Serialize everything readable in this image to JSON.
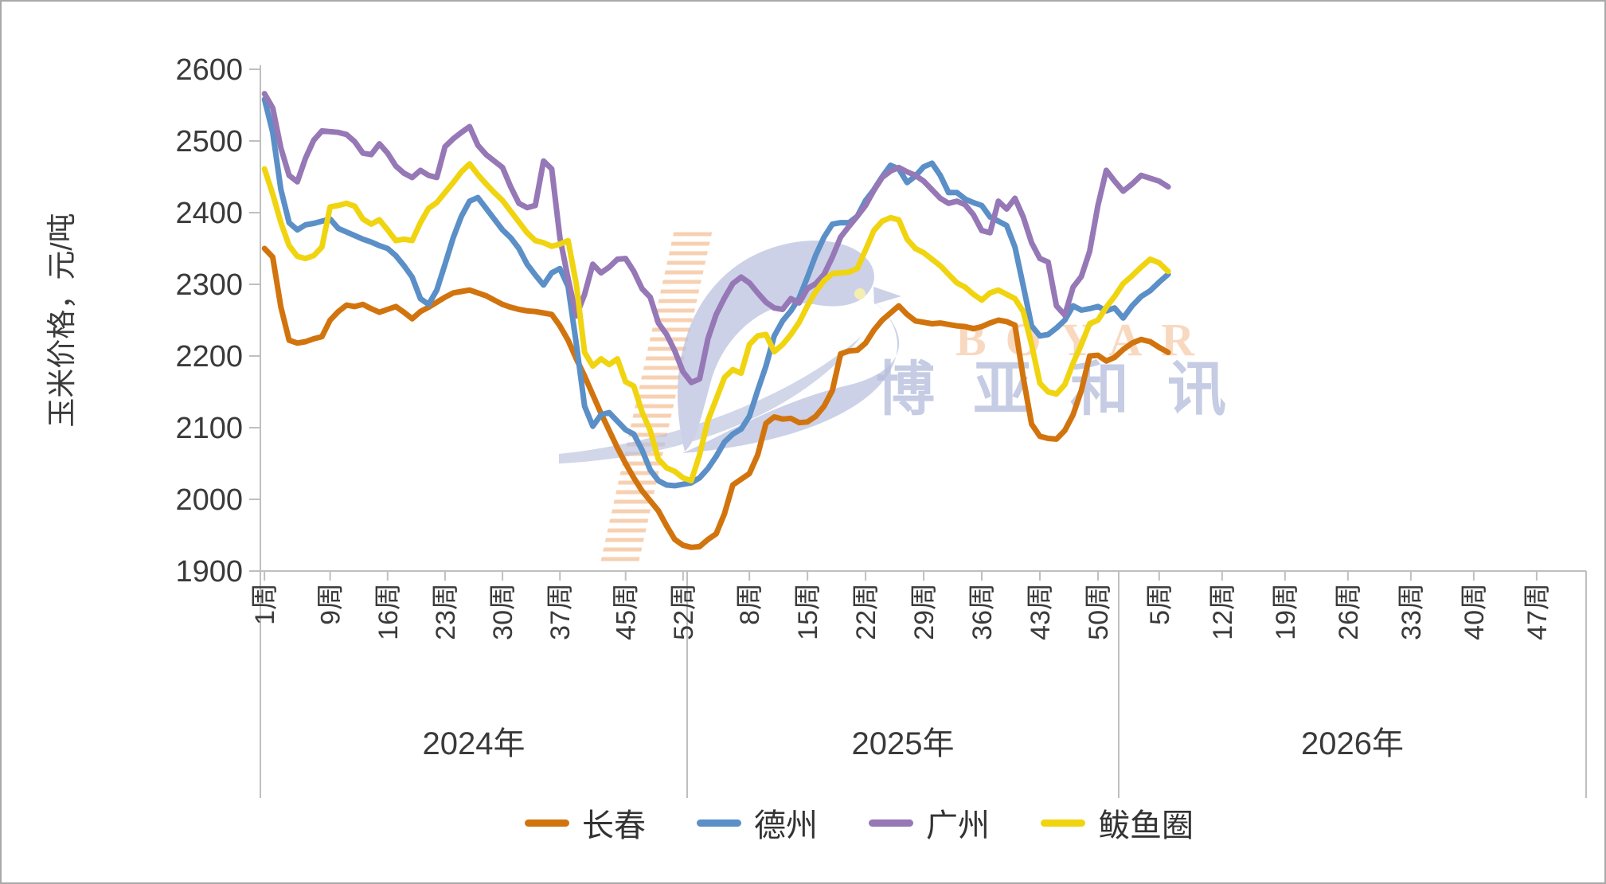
{
  "chart_data": {
    "type": "line",
    "title": "",
    "ylabel": "玉米价格，元/吨",
    "ylim": [
      1900,
      2600
    ],
    "yticks": [
      2600,
      2500,
      2400,
      2300,
      2200,
      2100,
      2000,
      1900
    ],
    "grid": "off",
    "legend_position": "bottom",
    "week_suffix": "周",
    "x_years": [
      {
        "label": "2024年",
        "weeks": 52,
        "tick_weeks": [
          1,
          9,
          16,
          23,
          30,
          37,
          45,
          52
        ],
        "tick_labels": [
          "1周",
          "9周",
          "16周",
          "23周",
          "30周",
          "37周",
          "45周",
          "52周"
        ]
      },
      {
        "label": "2025年",
        "weeks": 52,
        "tick_weeks": [
          8,
          15,
          22,
          29,
          36,
          43,
          50
        ],
        "tick_labels": [
          "8周",
          "15周",
          "22周",
          "29周",
          "36周",
          "43周",
          "50周"
        ]
      },
      {
        "label": "2026年",
        "weeks": 52,
        "tick_weeks": [
          5,
          12,
          19,
          26,
          33,
          40,
          47
        ],
        "tick_labels": [
          "5周",
          "12周",
          "19周",
          "26周",
          "33周",
          "40周",
          "47周"
        ]
      }
    ],
    "series": [
      {
        "id": "changchun",
        "name": "长春",
        "color": "#D2740E",
        "values_2024": [
          2350,
          2338,
          2268,
          2222,
          2218,
          2220,
          2224,
          2227,
          2250,
          2262,
          2271,
          2269,
          2272,
          2266,
          2261,
          2265,
          2269,
          2261,
          2252,
          2262,
          2268,
          2275,
          2282,
          2288,
          2290,
          2292,
          2288,
          2284,
          2278,
          2272,
          2268,
          2265,
          2263,
          2262,
          2260,
          2258,
          2242,
          2222,
          2196,
          2172,
          2146,
          2120,
          2096,
          2072,
          2050,
          2030,
          2012,
          1998,
          1984,
          1963,
          1944,
          1936
        ],
        "values_2025": [
          1933,
          1934,
          1944,
          1952,
          1980,
          2020,
          2028,
          2036,
          2062,
          2106,
          2115,
          2112,
          2113,
          2107,
          2108,
          2116,
          2130,
          2152,
          2203,
          2207,
          2208,
          2218,
          2236,
          2250,
          2260,
          2270,
          2258,
          2249,
          2247,
          2245,
          2246,
          2244,
          2242,
          2241,
          2238,
          2241,
          2246,
          2250,
          2248,
          2243,
          2170,
          2105,
          2088,
          2085,
          2084,
          2096,
          2118,
          2152,
          2200,
          2201,
          2193,
          2198
        ],
        "values_2026": [
          2209,
          2218,
          2223,
          2220,
          2212,
          2205
        ]
      },
      {
        "id": "dezhou",
        "name": "德州",
        "color": "#5B8FC7",
        "values_2024": [
          2558,
          2512,
          2432,
          2386,
          2376,
          2383,
          2385,
          2388,
          2391,
          2378,
          2373,
          2368,
          2363,
          2359,
          2354,
          2350,
          2340,
          2326,
          2310,
          2280,
          2272,
          2292,
          2328,
          2365,
          2395,
          2416,
          2421,
          2406,
          2391,
          2376,
          2365,
          2350,
          2328,
          2313,
          2299,
          2316,
          2322,
          2297,
          2217,
          2130,
          2102,
          2118,
          2121,
          2109,
          2097,
          2091,
          2069,
          2041,
          2026,
          2020,
          2019,
          2021
        ],
        "values_2025": [
          2023,
          2030,
          2043,
          2060,
          2080,
          2091,
          2098,
          2116,
          2152,
          2186,
          2228,
          2249,
          2263,
          2281,
          2310,
          2341,
          2366,
          2384,
          2386,
          2386,
          2395,
          2417,
          2432,
          2450,
          2466,
          2461,
          2442,
          2451,
          2464,
          2469,
          2452,
          2428,
          2428,
          2419,
          2414,
          2410,
          2394,
          2388,
          2382,
          2352,
          2298,
          2242,
          2228,
          2230,
          2239,
          2250,
          2270,
          2264,
          2266,
          2269,
          2263,
          2267
        ],
        "values_2026": [
          2253,
          2270,
          2283,
          2291,
          2303,
          2314
        ]
      },
      {
        "id": "guangzhou",
        "name": "广州",
        "color": "#9678B6",
        "values_2024": [
          2566,
          2546,
          2490,
          2452,
          2443,
          2476,
          2501,
          2514,
          2513,
          2512,
          2509,
          2499,
          2483,
          2481,
          2496,
          2483,
          2465,
          2455,
          2449,
          2459,
          2452,
          2449,
          2492,
          2503,
          2512,
          2520,
          2494,
          2481,
          2472,
          2463,
          2436,
          2413,
          2407,
          2410,
          2472,
          2461,
          2365,
          2308,
          2256,
          2286,
          2328,
          2316,
          2324,
          2335,
          2336,
          2318,
          2294,
          2282,
          2246,
          2230,
          2207,
          2178
        ],
        "values_2025": [
          2163,
          2168,
          2224,
          2258,
          2281,
          2301,
          2310,
          2302,
          2288,
          2275,
          2267,
          2265,
          2280,
          2274,
          2294,
          2301,
          2314,
          2338,
          2366,
          2381,
          2395,
          2410,
          2431,
          2449,
          2458,
          2463,
          2457,
          2452,
          2444,
          2432,
          2420,
          2413,
          2416,
          2411,
          2397,
          2375,
          2372,
          2416,
          2405,
          2420,
          2394,
          2358,
          2336,
          2331,
          2270,
          2257,
          2296,
          2311,
          2346,
          2410,
          2459,
          2444
        ],
        "values_2026": [
          2430,
          2440,
          2452,
          2448,
          2444,
          2436
        ]
      },
      {
        "id": "bayuquan",
        "name": "鲅鱼圈",
        "color": "#F0D410",
        "values_2024": [
          2461,
          2426,
          2386,
          2354,
          2339,
          2336,
          2340,
          2352,
          2408,
          2410,
          2413,
          2409,
          2391,
          2384,
          2390,
          2376,
          2361,
          2363,
          2361,
          2386,
          2406,
          2414,
          2428,
          2442,
          2457,
          2468,
          2453,
          2440,
          2428,
          2417,
          2402,
          2387,
          2372,
          2361,
          2358,
          2353,
          2356,
          2361,
          2300,
          2205,
          2186,
          2196,
          2188,
          2196,
          2164,
          2158,
          2122,
          2096,
          2056,
          2044,
          2039,
          2030
        ],
        "values_2025": [
          2026,
          2062,
          2110,
          2140,
          2170,
          2181,
          2176,
          2216,
          2228,
          2230,
          2206,
          2216,
          2230,
          2247,
          2270,
          2290,
          2305,
          2315,
          2316,
          2317,
          2322,
          2348,
          2375,
          2388,
          2393,
          2390,
          2363,
          2350,
          2344,
          2335,
          2326,
          2314,
          2302,
          2296,
          2286,
          2278,
          2288,
          2292,
          2286,
          2280,
          2262,
          2216,
          2162,
          2150,
          2147,
          2160,
          2190,
          2216,
          2245,
          2250,
          2268,
          2283
        ],
        "values_2026": [
          2301,
          2312,
          2324,
          2335,
          2330,
          2318
        ]
      }
    ]
  },
  "watermark": {
    "text_latin": "BOYAR",
    "text_cjk": "博亚和讯",
    "bird_color": "#aeb6d8",
    "stripe_color": "#f2b98c"
  },
  "style": {
    "axis_color": "#bfbfbf",
    "label_color": "#3a3a3a",
    "background": "#ffffff",
    "line_width": 7
  }
}
